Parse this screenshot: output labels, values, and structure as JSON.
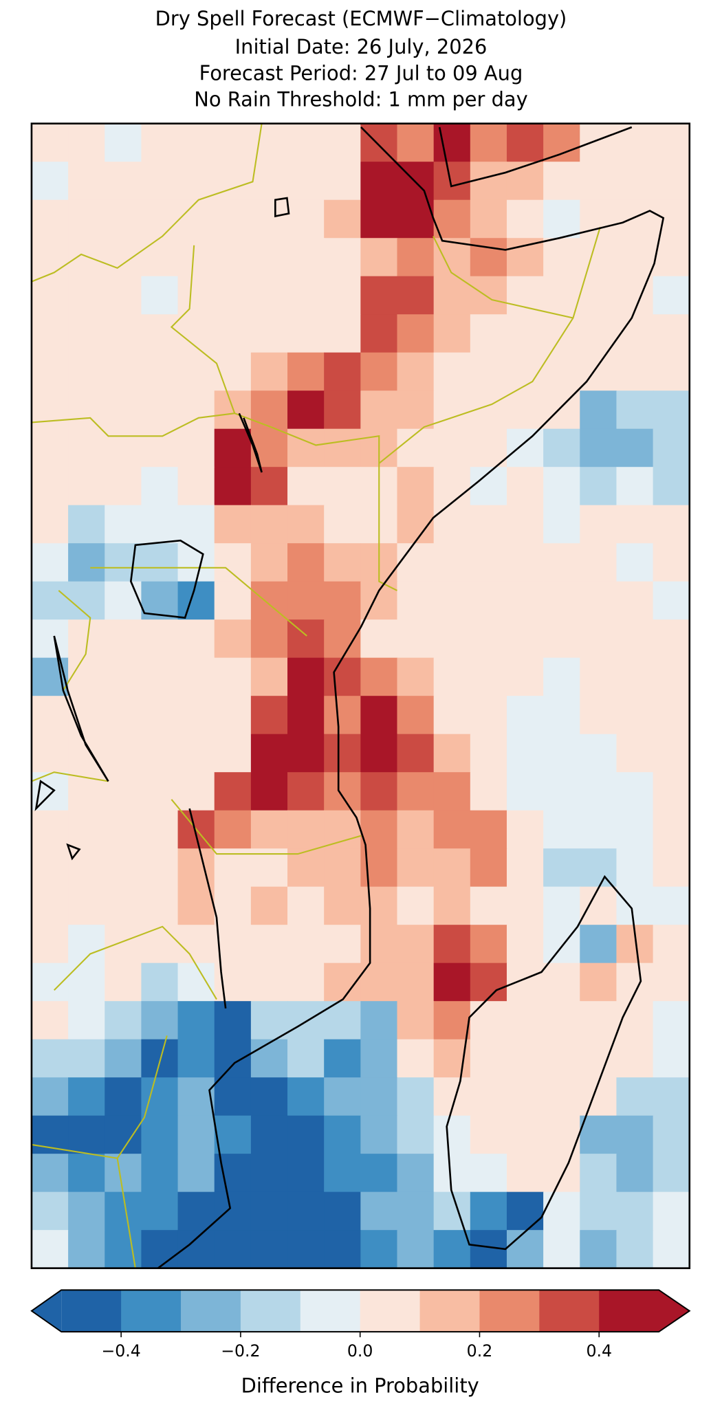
{
  "chart_data": {
    "type": "heatmap",
    "title": [
      "Dry Spell Forecast (ECMWF−Climatology)",
      "Initial Date: 26 July, 2026",
      "Forecast Period: 27 Jul to 09 Aug",
      "No Rain Threshold: 1 mm per day"
    ],
    "colorbar": {
      "label": "Difference in Probability",
      "levels": [
        -0.5,
        -0.4,
        -0.3,
        -0.2,
        -0.1,
        0,
        0.1,
        0.2,
        0.3,
        0.4,
        0.5
      ],
      "colors": [
        "#1f63a7",
        "#3e8ec3",
        "#7db5d7",
        "#b6d7e8",
        "#e5eff4",
        "#fbe5da",
        "#f8bda3",
        "#e9896c",
        "#cb4b43",
        "#a91628"
      ],
      "ticks": [
        {
          "value": -0.4,
          "label": "−0.4"
        },
        {
          "value": -0.2,
          "label": "−0.2"
        },
        {
          "value": 0,
          "label": "0.0"
        },
        0.2,
        0.4
      ]
    },
    "values": [
      [
        0.05,
        0.05,
        -0.05,
        0.05,
        0.05,
        0.05,
        0.05,
        0.05,
        0.05,
        0.35,
        0.25,
        0.45,
        0.25,
        0.35,
        0.25,
        0.05,
        0.05,
        0.05
      ],
      [
        -0.05,
        0.05,
        0.05,
        0.05,
        0.05,
        0.05,
        0.05,
        0.05,
        0.05,
        0.45,
        0.45,
        0.35,
        0.15,
        0.15,
        0.05,
        0.05,
        0.05,
        0.05
      ],
      [
        0.05,
        0.05,
        0.05,
        0.05,
        0.05,
        0.05,
        0.05,
        0.05,
        0.15,
        0.45,
        0.45,
        0.25,
        0.15,
        0.05,
        -0.05,
        0.05,
        0.05,
        0.05
      ],
      [
        0.05,
        0.05,
        0.05,
        0.05,
        0.05,
        0.05,
        0.05,
        0.05,
        0.05,
        0.15,
        0.25,
        0.15,
        0.25,
        0.15,
        0.05,
        0.05,
        0.05,
        0.05
      ],
      [
        0.05,
        0.05,
        0.05,
        -0.05,
        0.05,
        0.05,
        0.05,
        0.05,
        0.05,
        0.35,
        0.35,
        0.15,
        0.15,
        0.05,
        0.05,
        0.05,
        0.05,
        -0.05
      ],
      [
        0.05,
        0.05,
        0.05,
        0.05,
        0.05,
        0.05,
        0.05,
        0.05,
        0.05,
        0.35,
        0.25,
        0.15,
        0.05,
        0.05,
        0.05,
        0.05,
        0.05,
        0.05
      ],
      [
        0.05,
        0.05,
        0.05,
        0.05,
        0.05,
        0.05,
        0.15,
        0.25,
        0.35,
        0.25,
        0.15,
        0.05,
        0.05,
        0.05,
        0.05,
        0.05,
        0.05,
        0.05
      ],
      [
        0.05,
        0.05,
        0.05,
        0.05,
        0.05,
        0.15,
        0.25,
        0.45,
        0.35,
        0.15,
        0.15,
        0.05,
        0.05,
        0.05,
        0.05,
        -0.25,
        -0.15,
        -0.15
      ],
      [
        0.05,
        0.05,
        0.05,
        0.05,
        0.05,
        0.45,
        0.25,
        0.15,
        0.15,
        0.15,
        0.05,
        0.05,
        0.05,
        -0.05,
        -0.15,
        -0.25,
        -0.25,
        -0.15
      ],
      [
        0.05,
        0.05,
        0.05,
        -0.05,
        0.05,
        0.45,
        0.35,
        0.05,
        0.05,
        0.05,
        0.15,
        0.05,
        -0.05,
        0.05,
        -0.05,
        -0.15,
        -0.05,
        -0.15
      ],
      [
        0.05,
        -0.15,
        -0.05,
        -0.05,
        -0.05,
        0.15,
        0.15,
        0.15,
        0.05,
        0.05,
        0.15,
        0.05,
        0.05,
        0.05,
        -0.05,
        0.05,
        0.05,
        0.05
      ],
      [
        -0.05,
        -0.25,
        -0.15,
        -0.15,
        -0.05,
        0.05,
        0.15,
        0.25,
        0.15,
        0.15,
        0.05,
        0.05,
        0.05,
        0.05,
        0.05,
        0.05,
        -0.05,
        0.05
      ],
      [
        -0.15,
        -0.15,
        -0.05,
        -0.25,
        -0.35,
        0.05,
        0.25,
        0.25,
        0.25,
        0.15,
        0.05,
        0.05,
        0.05,
        0.05,
        0.05,
        0.05,
        0.05,
        -0.05
      ],
      [
        -0.05,
        0.05,
        0.05,
        0.05,
        0.05,
        0.15,
        0.25,
        0.35,
        0.25,
        0.05,
        0.05,
        0.05,
        0.05,
        0.05,
        0.05,
        0.05,
        0.05,
        0.05
      ],
      [
        -0.25,
        0.05,
        0.05,
        0.05,
        0.05,
        0.05,
        0.15,
        0.45,
        0.35,
        0.25,
        0.15,
        0.05,
        0.05,
        0.05,
        -0.05,
        0.05,
        0.05,
        0.05
      ],
      [
        0.05,
        0.05,
        0.05,
        0.05,
        0.05,
        0.05,
        0.35,
        0.45,
        0.25,
        0.45,
        0.25,
        0.05,
        0.05,
        -0.05,
        -0.05,
        0.05,
        0.05,
        0.05
      ],
      [
        0.05,
        0.05,
        0.05,
        0.05,
        0.05,
        0.05,
        0.45,
        0.45,
        0.35,
        0.45,
        0.35,
        0.15,
        0.05,
        -0.05,
        -0.05,
        -0.05,
        0.05,
        0.05
      ],
      [
        -0.05,
        0.05,
        0.05,
        0.05,
        0.05,
        0.35,
        0.45,
        0.35,
        0.25,
        0.35,
        0.25,
        0.25,
        0.05,
        -0.05,
        -0.05,
        -0.05,
        -0.05,
        0.05
      ],
      [
        0.05,
        0.05,
        0.05,
        0.05,
        0.35,
        0.25,
        0.15,
        0.15,
        0.15,
        0.25,
        0.15,
        0.25,
        0.25,
        0.05,
        -0.05,
        -0.05,
        -0.05,
        0.05
      ],
      [
        0.05,
        0.05,
        0.05,
        0.05,
        0.15,
        0.05,
        0.05,
        0.15,
        0.15,
        0.25,
        0.15,
        0.15,
        0.25,
        0.05,
        -0.15,
        -0.15,
        -0.05,
        0.05
      ],
      [
        0.05,
        0.05,
        0.05,
        0.05,
        0.15,
        0.05,
        0.15,
        0.05,
        0.15,
        0.15,
        0.05,
        0.15,
        0.05,
        0.05,
        -0.05,
        0.05,
        -0.05,
        -0.05
      ],
      [
        0.05,
        -0.05,
        0.05,
        0.05,
        0.05,
        0.05,
        0.05,
        0.05,
        0.05,
        0.15,
        0.15,
        0.35,
        0.25,
        0.05,
        -0.05,
        -0.25,
        0.15,
        0.05
      ],
      [
        -0.05,
        -0.05,
        0.05,
        -0.15,
        -0.05,
        0.05,
        0.05,
        0.05,
        0.15,
        0.15,
        0.15,
        0.45,
        0.35,
        0.05,
        0.05,
        0.15,
        0.05,
        0.05
      ],
      [
        0.05,
        -0.05,
        -0.15,
        -0.25,
        -0.35,
        -0.45,
        -0.15,
        -0.15,
        -0.15,
        -0.25,
        0.15,
        0.25,
        0.05,
        0.05,
        0.05,
        0.05,
        0.05,
        -0.05
      ],
      [
        -0.15,
        -0.15,
        -0.25,
        -0.45,
        -0.35,
        -0.45,
        -0.25,
        -0.15,
        -0.35,
        -0.25,
        0.05,
        0.15,
        0.05,
        0.05,
        0.05,
        0.05,
        0.05,
        -0.05
      ],
      [
        -0.25,
        -0.35,
        -0.45,
        -0.35,
        -0.25,
        -0.45,
        -0.45,
        -0.35,
        -0.25,
        -0.25,
        -0.15,
        0.05,
        0.05,
        0.05,
        0.05,
        0.05,
        -0.15,
        -0.15
      ],
      [
        -0.45,
        -0.45,
        -0.45,
        -0.35,
        -0.25,
        -0.35,
        -0.45,
        -0.45,
        -0.35,
        -0.25,
        -0.15,
        -0.05,
        0.05,
        0.05,
        0.05,
        -0.25,
        -0.25,
        -0.15
      ],
      [
        -0.25,
        -0.35,
        -0.25,
        -0.35,
        -0.25,
        -0.45,
        -0.45,
        -0.45,
        -0.35,
        -0.35,
        -0.25,
        -0.05,
        -0.05,
        0.05,
        0.05,
        -0.15,
        -0.25,
        -0.15
      ],
      [
        -0.15,
        -0.25,
        -0.35,
        -0.35,
        -0.45,
        -0.45,
        -0.45,
        -0.45,
        -0.45,
        -0.25,
        -0.25,
        -0.15,
        -0.35,
        -0.45,
        -0.05,
        -0.15,
        -0.15,
        -0.05
      ],
      [
        -0.05,
        -0.25,
        -0.35,
        -0.45,
        -0.45,
        -0.45,
        -0.45,
        -0.45,
        -0.45,
        -0.35,
        -0.25,
        -0.35,
        -0.45,
        -0.25,
        -0.05,
        -0.25,
        -0.15,
        -0.05
      ]
    ]
  }
}
